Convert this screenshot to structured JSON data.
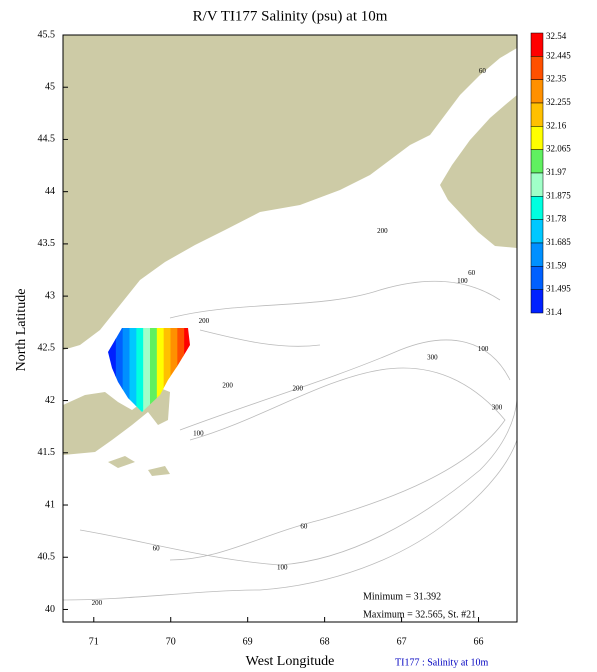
{
  "chart_data": {
    "type": "contour-map",
    "title": "R/V TI177 Salinity (psu) at 10m",
    "x_label": "West Longitude",
    "y_label": "North Latitude",
    "xlim": [
      71.4,
      65.5
    ],
    "ylim": [
      39.88,
      45.5
    ],
    "xticks": [
      71,
      70,
      69,
      68,
      67,
      66
    ],
    "yticks": [
      40,
      40.5,
      41,
      41.5,
      42,
      42.5,
      43,
      43.5,
      44,
      44.5,
      45,
      45.5
    ],
    "colorbar": {
      "levels": [
        32.54,
        32.445,
        32.35,
        32.255,
        32.16,
        32.065,
        31.97,
        31.875,
        31.78,
        31.685,
        31.59,
        31.495,
        31.4
      ],
      "colors": [
        "#ff0000",
        "#ff5000",
        "#ff9000",
        "#ffc000",
        "#ffff00",
        "#60f060",
        "#a0ffc8",
        "#00ffe0",
        "#00c8ff",
        "#0090ff",
        "#0060ff",
        "#0020ff"
      ]
    },
    "annotations": [
      "Minimum = 31.392",
      "Maximum = 32.565, St. #21"
    ],
    "footer": "TI177 : Salinity at 10m",
    "isobath_labels": [
      {
        "depth": 60,
        "lon": 65.95,
        "lat": 45.15
      },
      {
        "depth": 200,
        "lon": 69.57,
        "lat": 42.76
      },
      {
        "depth": 200,
        "lon": 67.25,
        "lat": 43.62
      },
      {
        "depth": 60,
        "lon": 66.09,
        "lat": 43.22
      },
      {
        "depth": 100,
        "lon": 66.21,
        "lat": 43.14
      },
      {
        "depth": 300,
        "lon": 66.6,
        "lat": 42.41
      },
      {
        "depth": 100,
        "lon": 65.94,
        "lat": 42.49
      },
      {
        "depth": 300,
        "lon": 65.76,
        "lat": 41.93
      },
      {
        "depth": 200,
        "lon": 68.35,
        "lat": 42.11
      },
      {
        "depth": 200,
        "lon": 69.26,
        "lat": 42.14
      },
      {
        "depth": 100,
        "lon": 69.64,
        "lat": 41.68
      },
      {
        "depth": 60,
        "lon": 68.27,
        "lat": 40.79
      },
      {
        "depth": 60,
        "lon": 70.19,
        "lat": 40.58
      },
      {
        "depth": 100,
        "lon": 68.55,
        "lat": 40.4
      },
      {
        "depth": 200,
        "lon": 70.96,
        "lat": 40.06
      }
    ]
  }
}
